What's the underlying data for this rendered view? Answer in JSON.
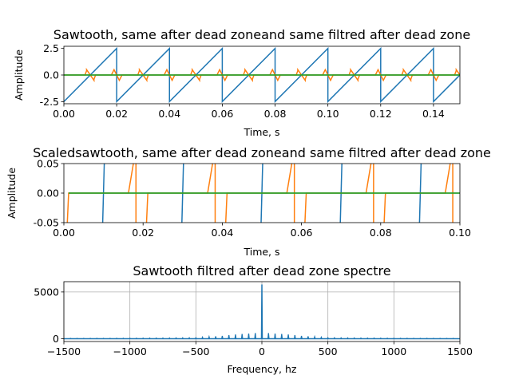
{
  "chart_data": [
    {
      "type": "line",
      "title": "Sawtooth, same after dead zoneand same filtred after dead zone",
      "xlabel": "Time, s",
      "ylabel": "Amplitude",
      "xlim": [
        0,
        0.15
      ],
      "ylim": [
        -2.7,
        2.7
      ],
      "xticks": [
        0.0,
        0.02,
        0.04,
        0.06,
        0.08,
        0.1,
        0.12,
        0.14
      ],
      "xtick_labels": [
        "0.00",
        "0.02",
        "0.04",
        "0.06",
        "0.08",
        "0.10",
        "0.12",
        "0.14"
      ],
      "yticks": [
        -2.5,
        0.0,
        2.5
      ],
      "ytick_labels": [
        "-2.5",
        "0.0",
        "2.5"
      ],
      "grid": false,
      "colors": [
        "#1f77b4",
        "#ff7f0e",
        "#2ca02c"
      ],
      "sawtooth": {
        "period": 0.02,
        "amplitude": 2.5,
        "phase": -0.01
      },
      "dead_zone_output": {
        "period": 0.02,
        "pulse_peak": 0.5,
        "pulse_half_width": 0.002
      },
      "filtered_output": {
        "value": 0.0
      }
    },
    {
      "type": "line",
      "title": "Scaledsawtooth, same after dead zoneand same filtred after dead zone",
      "xlabel": "Time, s",
      "ylabel": "Amplitude",
      "xlim": [
        0,
        0.1
      ],
      "ylim": [
        -0.05,
        0.05
      ],
      "xticks": [
        0.0,
        0.02,
        0.04,
        0.06,
        0.08,
        0.1
      ],
      "xtick_labels": [
        "0.00",
        "0.02",
        "0.04",
        "0.06",
        "0.08",
        "0.10"
      ],
      "yticks": [
        -0.05,
        0.0,
        0.05
      ],
      "ytick_labels": [
        "-0.05",
        "0.00",
        "0.05"
      ],
      "grid": false,
      "colors": [
        "#1f77b4",
        "#ff7f0e",
        "#2ca02c"
      ],
      "sawtooth_zero_crossings": [
        0.01,
        0.03,
        0.05,
        0.07,
        0.09
      ],
      "dead_zone_rises": [
        0.0178,
        0.0378,
        0.0578,
        0.0778,
        0.0978
      ],
      "dead_zone_falls": [
        0.0012,
        0.0212,
        0.0412,
        0.0612,
        0.0812
      ],
      "filtered_output": {
        "value": 0.0
      }
    },
    {
      "type": "line",
      "title": "Sawtooth filtred after dead zone spectre",
      "xlabel": "Frequency, hz",
      "ylabel": "",
      "xlim": [
        -1500,
        1500
      ],
      "ylim": [
        -300,
        6100
      ],
      "xticks": [
        -1500,
        -1000,
        -500,
        0,
        500,
        1000,
        1500
      ],
      "xtick_labels": [
        "−1500",
        "−1000",
        "−500",
        "0",
        "500",
        "1000",
        "1500"
      ],
      "yticks": [
        0,
        5000
      ],
      "ytick_labels": [
        "0",
        "5000"
      ],
      "grid": true,
      "colors": [
        "#1f77b4"
      ],
      "x": [
        -1500,
        -1250,
        -1000,
        -750,
        -500,
        -450,
        -400,
        -350,
        -300,
        -250,
        -200,
        -150,
        -100,
        -50,
        -25,
        0,
        25,
        50,
        100,
        150,
        200,
        250,
        300,
        350,
        400,
        450,
        500,
        750,
        1000,
        1250,
        1500
      ],
      "values": [
        30,
        35,
        50,
        70,
        100,
        150,
        200,
        250,
        300,
        380,
        450,
        500,
        550,
        600,
        80,
        5800,
        80,
        600,
        550,
        500,
        450,
        380,
        300,
        250,
        200,
        150,
        100,
        70,
        50,
        35,
        30
      ]
    }
  ]
}
